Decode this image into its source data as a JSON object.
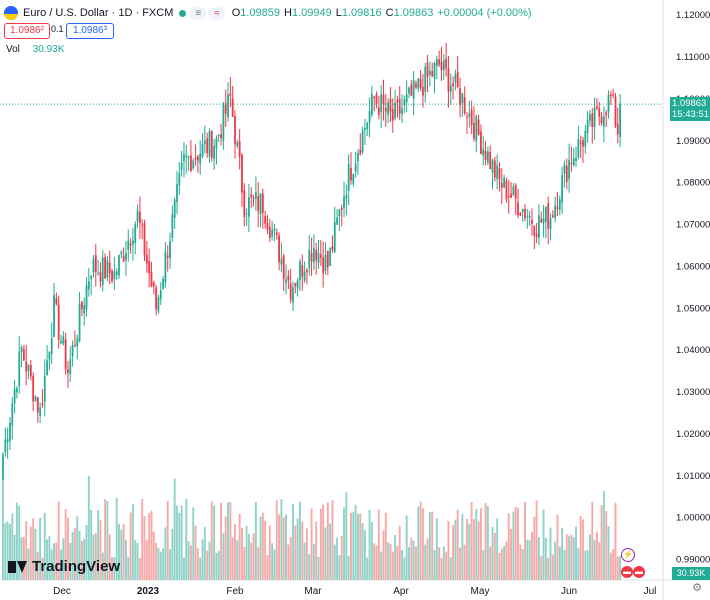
{
  "header": {
    "symbol": "Euro / U.S. Dollar · 1D · FXCM",
    "mode_a": "≡",
    "mode_b": "≈",
    "o_label": "O",
    "o_value": "1.09859",
    "h_label": "H",
    "h_value": "1.09949",
    "l_label": "L",
    "l_value": "1.09816",
    "c_label": "C",
    "c_value": "1.09863",
    "change": "+0.00004 (+0.00%)"
  },
  "trade": {
    "sell": "1.0986²",
    "spread": "0.1",
    "buy": "1.0986³"
  },
  "volume_legend": {
    "label": "Vol",
    "value": "30.93K"
  },
  "price_tag": {
    "price": "1.09863",
    "countdown": "15:43:51"
  },
  "vol_tag": "30.93K",
  "brand": "TradingView",
  "colors": {
    "up": "#22ab94",
    "down": "#f23645",
    "up_vol": "#8fd2c7",
    "down_vol": "#f7a9a7"
  },
  "chart_data": {
    "type": "candlestick",
    "y_ticks": [
      "1.12000",
      "1.11000",
      "1.10000",
      "1.09000",
      "1.08000",
      "1.07000",
      "1.06000",
      "1.05000",
      "1.04000",
      "1.03000",
      "1.02000",
      "1.01000",
      "1.00000",
      "0.99000"
    ],
    "x_ticks": [
      "Dec",
      "2023",
      "Feb",
      "Mar",
      "Apr",
      "May",
      "Jun",
      "Jul"
    ],
    "ylim": [
      0.985,
      1.1235
    ],
    "last_price": 1.09863,
    "anchors": [
      {
        "x": 0,
        "y": 1.015
      },
      {
        "x": 8,
        "y": 1.04
      },
      {
        "x": 16,
        "y": 1.025
      },
      {
        "x": 22,
        "y": 1.05
      },
      {
        "x": 28,
        "y": 1.035
      },
      {
        "x": 38,
        "y": 1.06
      },
      {
        "x": 48,
        "y": 1.058
      },
      {
        "x": 58,
        "y": 1.072
      },
      {
        "x": 66,
        "y": 1.05
      },
      {
        "x": 78,
        "y": 1.085
      },
      {
        "x": 92,
        "y": 1.09
      },
      {
        "x": 98,
        "y": 1.1
      },
      {
        "x": 104,
        "y": 1.075
      },
      {
        "x": 112,
        "y": 1.075
      },
      {
        "x": 124,
        "y": 1.055
      },
      {
        "x": 134,
        "y": 1.065
      },
      {
        "x": 140,
        "y": 1.06
      },
      {
        "x": 148,
        "y": 1.08
      },
      {
        "x": 160,
        "y": 1.1
      },
      {
        "x": 168,
        "y": 1.095
      },
      {
        "x": 180,
        "y": 1.103
      },
      {
        "x": 188,
        "y": 1.108
      },
      {
        "x": 198,
        "y": 1.1
      },
      {
        "x": 214,
        "y": 1.08
      },
      {
        "x": 230,
        "y": 1.07
      },
      {
        "x": 236,
        "y": 1.072
      },
      {
        "x": 244,
        "y": 1.085
      },
      {
        "x": 254,
        "y": 1.094
      },
      {
        "x": 262,
        "y": 1.1
      },
      {
        "x": 266,
        "y": 1.09
      }
    ]
  }
}
